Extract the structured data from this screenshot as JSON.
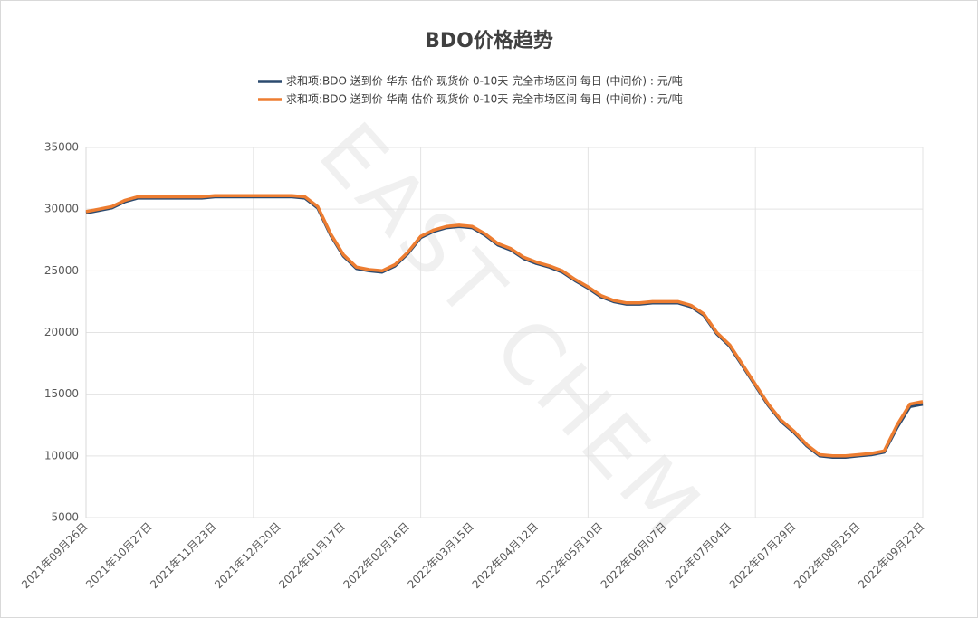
{
  "chart_data": {
    "type": "line",
    "title": "BDO价格趋势",
    "watermark": "EAST CHEM",
    "categories": [
      "2021年09月26日",
      null,
      null,
      null,
      null,
      "2021年10月27日",
      null,
      null,
      null,
      null,
      "2021年11月23日",
      null,
      null,
      null,
      null,
      "2021年12月20日",
      null,
      null,
      null,
      null,
      "2022年01月17日",
      null,
      null,
      null,
      null,
      "2022年02月16日",
      null,
      null,
      null,
      null,
      "2022年03月15日",
      null,
      null,
      null,
      null,
      "2022年04月12日",
      null,
      null,
      null,
      null,
      "2022年05月10日",
      null,
      null,
      null,
      null,
      "2022年06月07日",
      null,
      null,
      null,
      null,
      "2022年07月04日",
      null,
      null,
      null,
      null,
      "2022年07月29日",
      null,
      null,
      null,
      null,
      "2022年08月25日",
      null,
      null,
      null,
      null,
      "2022年09月22日"
    ],
    "series": [
      {
        "name": "求和项:BDO 送到价 华东 估价 现货价 0-10天 完全市场区间 每日 (中间价) : 元/吨",
        "color": "#2b4a6f",
        "values": [
          29700,
          29900,
          30100,
          30600,
          30900,
          30900,
          30900,
          30900,
          30900,
          30900,
          31000,
          31000,
          31000,
          31000,
          31000,
          31000,
          31000,
          30900,
          30100,
          27900,
          26200,
          25200,
          25000,
          24900,
          25400,
          26400,
          27700,
          28200,
          28500,
          28600,
          28500,
          27900,
          27100,
          26700,
          26000,
          25600,
          25300,
          24900,
          24200,
          23600,
          22900,
          22500,
          22300,
          22300,
          22400,
          22400,
          22400,
          22100,
          21400,
          19900,
          18900,
          17300,
          15700,
          14100,
          12800,
          11900,
          10800,
          10000,
          9900,
          9900,
          10000,
          10100,
          10300,
          12300,
          14000,
          14200
        ]
      },
      {
        "name": "求和项:BDO 送到价 华南 估价 现货价 0-10天 完全市场区间 每日 (中间价) : 元/吨",
        "color": "#ed7d31",
        "values": [
          29800,
          30000,
          30200,
          30700,
          31000,
          31000,
          31000,
          31000,
          31000,
          31000,
          31100,
          31100,
          31100,
          31100,
          31100,
          31100,
          31100,
          31000,
          30200,
          28000,
          26300,
          25300,
          25100,
          25000,
          25500,
          26500,
          27800,
          28300,
          28600,
          28700,
          28600,
          28000,
          27200,
          26800,
          26100,
          25700,
          25400,
          25000,
          24300,
          23700,
          23000,
          22600,
          22400,
          22400,
          22500,
          22500,
          22500,
          22200,
          21500,
          20000,
          19000,
          17400,
          15800,
          14200,
          12900,
          12000,
          10900,
          10100,
          10000,
          10000,
          10100,
          10200,
          10400,
          12500,
          14200,
          14400
        ]
      }
    ],
    "ylim": [
      5000,
      35000
    ],
    "yticks": [
      5000,
      10000,
      15000,
      20000,
      25000,
      30000,
      35000
    ],
    "grid": true
  }
}
